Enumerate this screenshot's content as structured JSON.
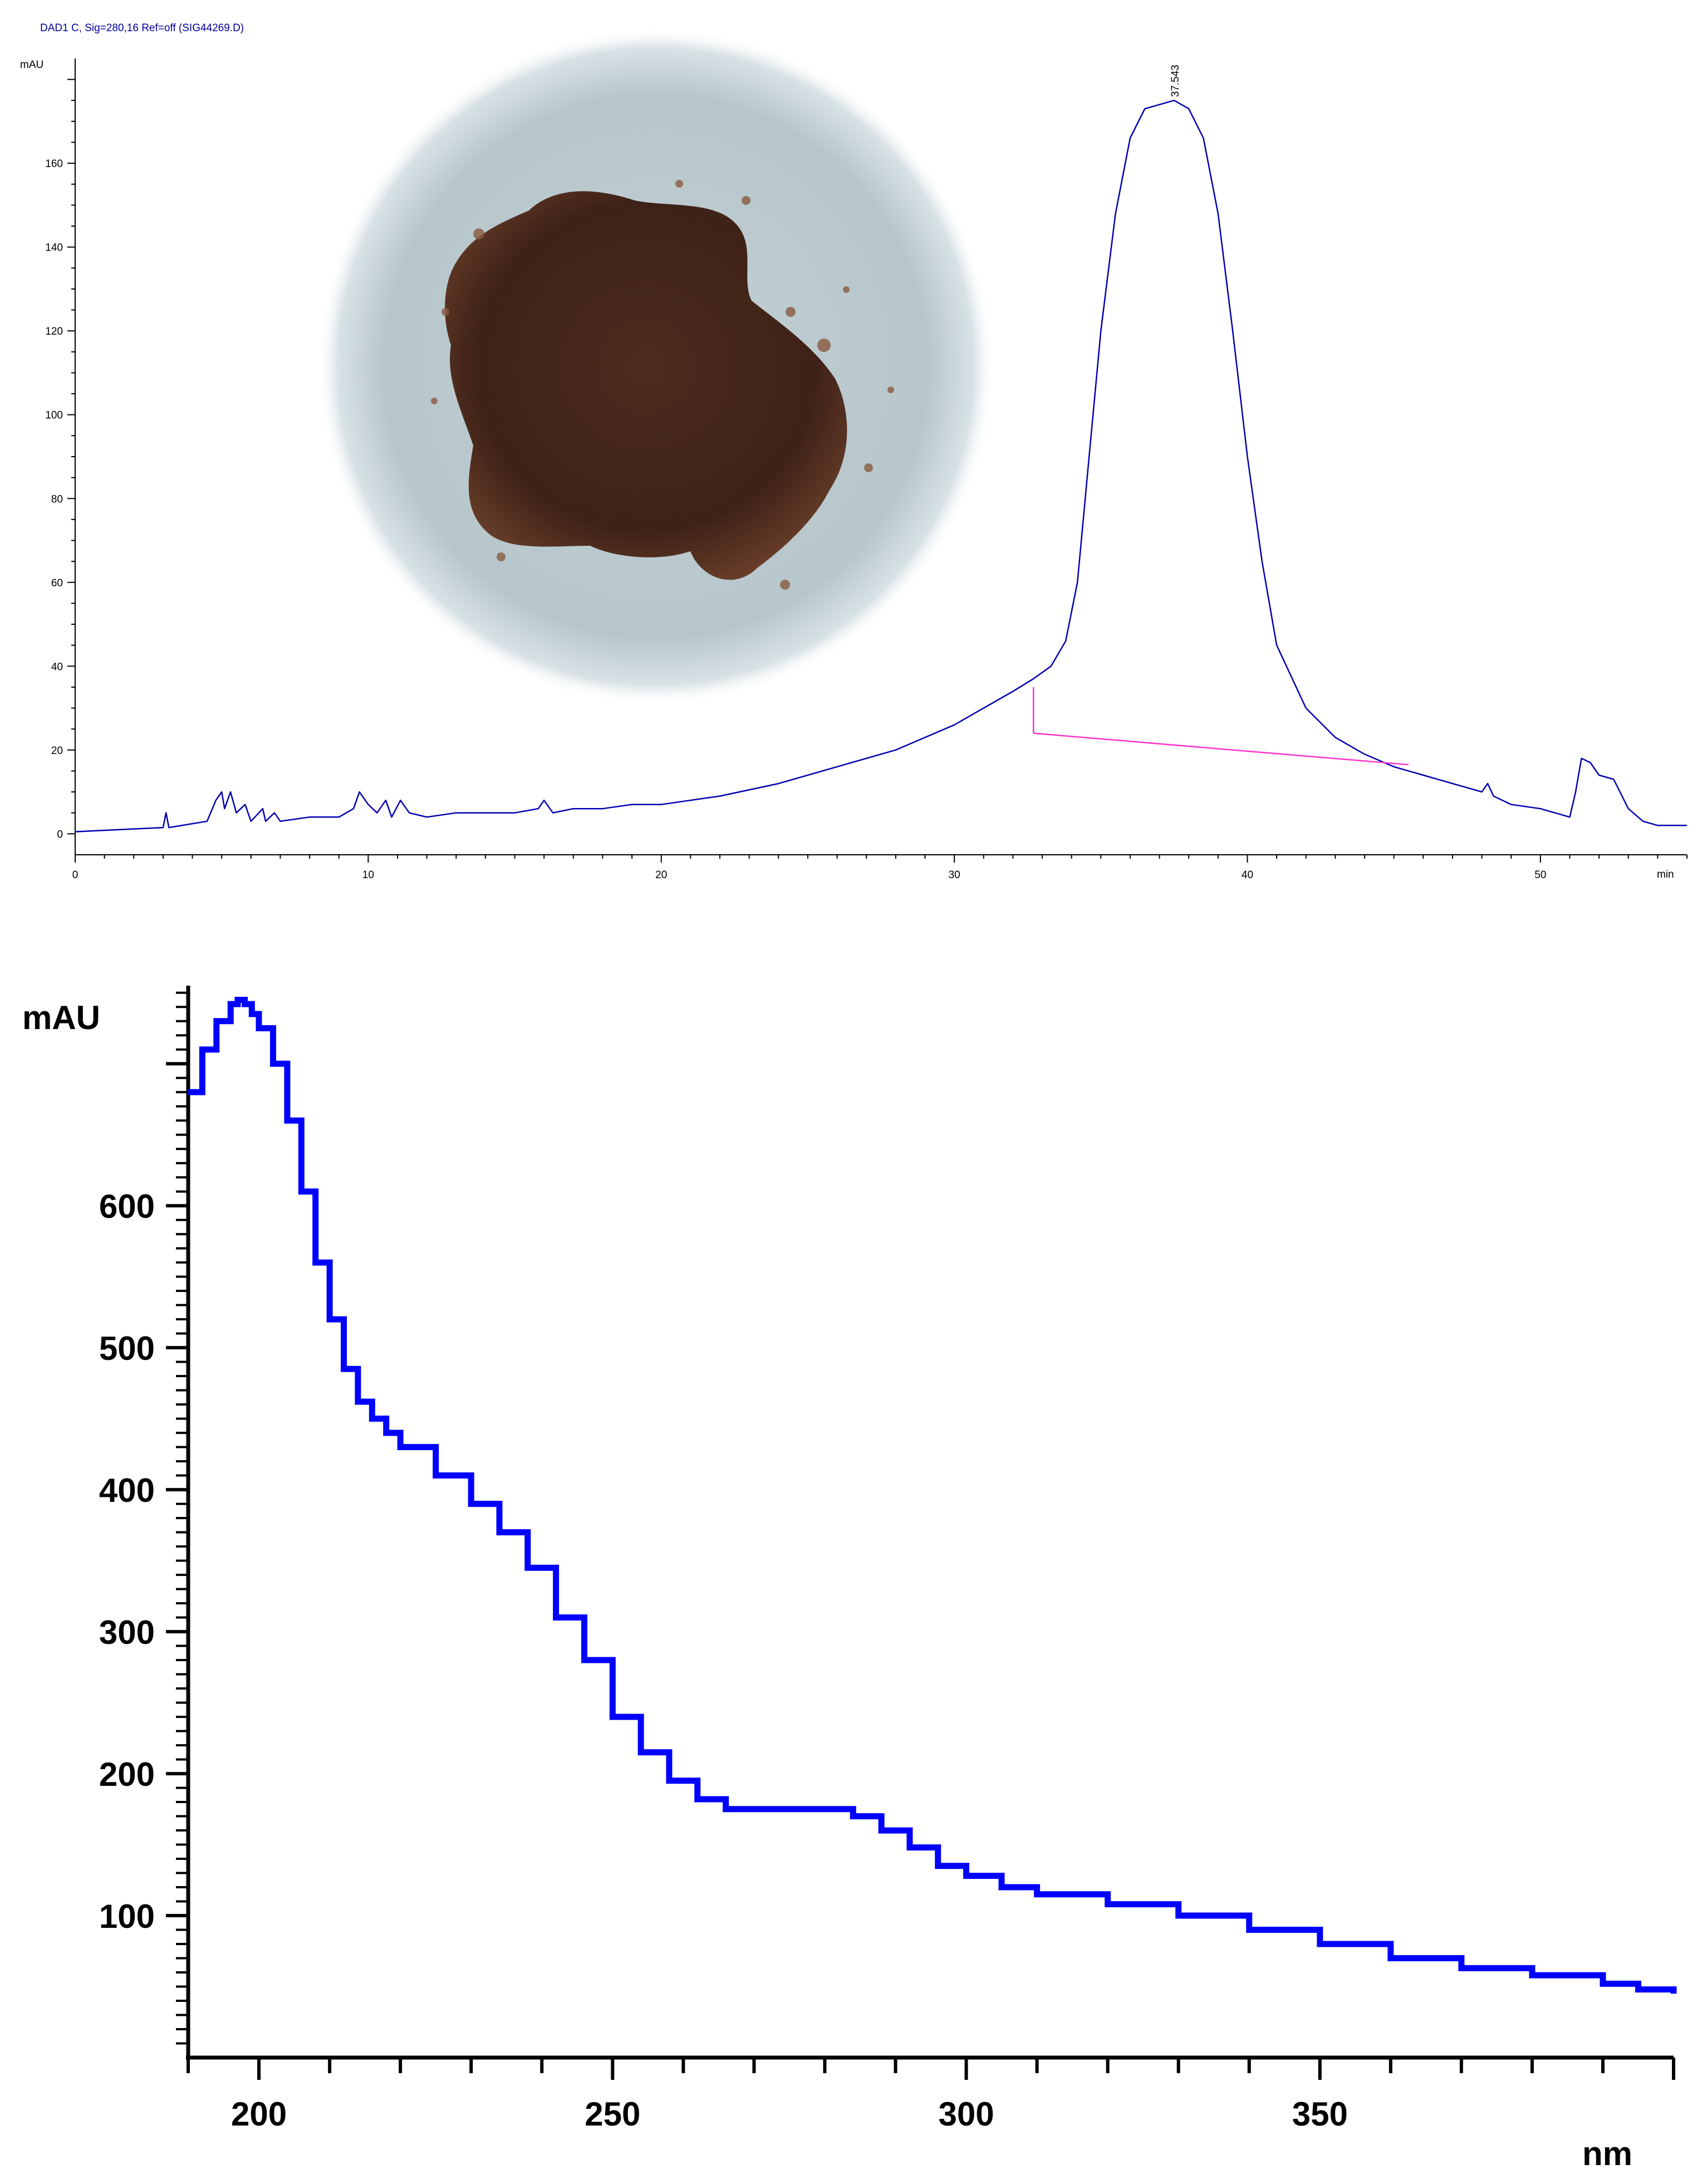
{
  "chart_data": [
    {
      "type": "line",
      "title": "DAD1 C, Sig=280,16 Ref=off (SIG44269.D)",
      "ylabel": "mAU",
      "xlabel": "min",
      "xlim": [
        0,
        55
      ],
      "ylim": [
        -5,
        185
      ],
      "x_ticks": [
        0,
        10,
        20,
        30,
        40,
        50
      ],
      "y_ticks": [
        0,
        20,
        40,
        60,
        80,
        100,
        120,
        140,
        160
      ],
      "peak_label": {
        "text": "37.543",
        "x": 37.543,
        "y": 175
      },
      "series": [
        {
          "color": "#0000b0",
          "x": [
            0,
            3,
            3.1,
            3.2,
            4.5,
            4.8,
            5,
            5.1,
            5.3,
            5.5,
            5.8,
            6,
            6.4,
            6.5,
            6.8,
            7,
            8,
            9,
            9.5,
            9.7,
            10,
            10.3,
            10.6,
            10.8,
            11.1,
            11.4,
            12,
            13,
            14,
            15,
            15.8,
            16,
            16.3,
            17,
            18,
            19,
            20,
            22,
            24,
            26,
            28,
            30,
            31,
            32,
            32.7,
            33.3,
            33.8,
            34.2,
            34.6,
            35,
            35.5,
            36,
            36.5,
            37,
            37.5,
            38,
            38.5,
            39,
            39.5,
            40,
            40.5,
            41,
            42,
            43,
            44,
            45,
            46,
            47,
            48,
            48.2,
            48.4,
            49,
            50,
            51,
            51.2,
            51.4,
            51.7,
            52,
            52.5,
            53,
            53.5,
            54,
            55
          ],
          "y": [
            0.5,
            1.5,
            5,
            1.5,
            3,
            8,
            10,
            6,
            10,
            5,
            7,
            3,
            6,
            3,
            5,
            3,
            4,
            4,
            6,
            10,
            7,
            5,
            8,
            4,
            8,
            5,
            4,
            5,
            5,
            5,
            6,
            8,
            5,
            6,
            6,
            7,
            7,
            9,
            12,
            16,
            20,
            26,
            30,
            34,
            37,
            40,
            46,
            60,
            90,
            120,
            148,
            166,
            173,
            174,
            175,
            173,
            166,
            148,
            120,
            90,
            65,
            45,
            30,
            23,
            19,
            16,
            14,
            12,
            10,
            12,
            9,
            7,
            6,
            4,
            10,
            18,
            17,
            14,
            13,
            6,
            3,
            2,
            2
          ]
        },
        {
          "name": "baseline",
          "color": "#ff33cc",
          "x": [
            32.7,
            45.5
          ],
          "y": [
            24,
            16.5
          ]
        }
      ],
      "baseline_drop": {
        "x": 32.7,
        "y_top": 35,
        "y_bottom": 24
      }
    },
    {
      "type": "line",
      "ylabel": "mAU",
      "xlabel": "nm",
      "xlim": [
        190,
        400
      ],
      "ylim": [
        0,
        755
      ],
      "x_ticks": [
        200,
        250,
        300,
        350
      ],
      "y_ticks": [
        100,
        200,
        300,
        400,
        500,
        600
      ],
      "series": [
        {
          "color": "#0000ff",
          "x": [
            190,
            192,
            194,
            196,
            197,
            198,
            199,
            200,
            202,
            204,
            206,
            208,
            210,
            212,
            214,
            216,
            218,
            220,
            225,
            230,
            234,
            238,
            242,
            246,
            250,
            254,
            258,
            262,
            266,
            270,
            275,
            280,
            284,
            288,
            292,
            296,
            300,
            305,
            310,
            320,
            330,
            340,
            350,
            360,
            370,
            380,
            390,
            395,
            400
          ],
          "y": [
            680,
            710,
            730,
            742,
            745,
            742,
            735,
            725,
            700,
            660,
            610,
            560,
            520,
            485,
            462,
            450,
            440,
            430,
            410,
            390,
            370,
            345,
            310,
            280,
            240,
            215,
            195,
            182,
            175,
            175,
            175,
            175,
            170,
            160,
            148,
            135,
            128,
            120,
            115,
            108,
            100,
            90,
            80,
            70,
            63,
            58,
            52,
            48,
            45
          ]
        }
      ]
    }
  ],
  "inset_photo": {
    "subject": "brown powder sample",
    "background": "#b9c8cd",
    "powder": "#4a2a1c"
  }
}
